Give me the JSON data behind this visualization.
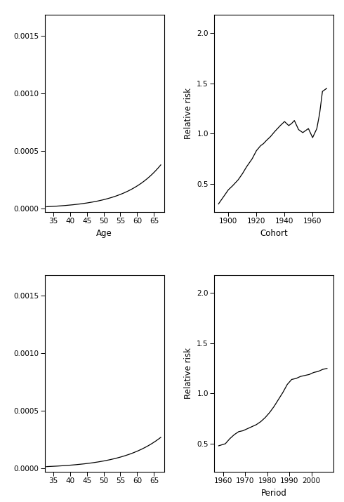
{
  "cohort_x": [
    1893,
    1895,
    1897,
    1900,
    1903,
    1905,
    1907,
    1910,
    1913,
    1915,
    1917,
    1920,
    1923,
    1925,
    1927,
    1930,
    1933,
    1935,
    1937,
    1940,
    1943,
    1945,
    1947,
    1950,
    1953,
    1955,
    1957,
    1960,
    1963,
    1965,
    1967,
    1970
  ],
  "cohort_y": [
    0.3,
    0.34,
    0.38,
    0.44,
    0.48,
    0.51,
    0.54,
    0.6,
    0.67,
    0.71,
    0.75,
    0.83,
    0.88,
    0.9,
    0.93,
    0.97,
    1.02,
    1.05,
    1.08,
    1.12,
    1.08,
    1.1,
    1.13,
    1.04,
    1.01,
    1.03,
    1.05,
    0.96,
    1.05,
    1.2,
    1.42,
    1.45
  ],
  "period_x": [
    1958,
    1961,
    1963,
    1965,
    1967,
    1969,
    1971,
    1973,
    1975,
    1977,
    1979,
    1981,
    1983,
    1985,
    1987,
    1989,
    1991,
    1993,
    1995,
    1997,
    1999,
    2001,
    2003,
    2005,
    2007
  ],
  "period_y": [
    0.48,
    0.5,
    0.55,
    0.59,
    0.62,
    0.63,
    0.65,
    0.67,
    0.69,
    0.72,
    0.76,
    0.81,
    0.87,
    0.94,
    1.01,
    1.09,
    1.14,
    1.15,
    1.17,
    1.18,
    1.19,
    1.21,
    1.22,
    1.24,
    1.25
  ],
  "line_color": "#000000",
  "bg_color": "#ffffff",
  "top_left_xlabel": "Age",
  "top_right_xlabel": "Cohort",
  "bot_left_xlabel": "",
  "bot_right_xlabel": "Period",
  "top_right_ylabel": "Relative risk",
  "bot_right_ylabel": "Relative risk",
  "yticks_age": [
    0.0,
    0.0005,
    0.001,
    0.0015
  ],
  "xticks_age": [
    35,
    40,
    45,
    50,
    55,
    60,
    65
  ],
  "xticks_cohort": [
    1900,
    1920,
    1940,
    1960
  ],
  "yticks_rr": [
    0.5,
    1.0,
    1.5,
    2.0
  ],
  "xticks_period": [
    1960,
    1970,
    1980,
    1990,
    2000
  ]
}
